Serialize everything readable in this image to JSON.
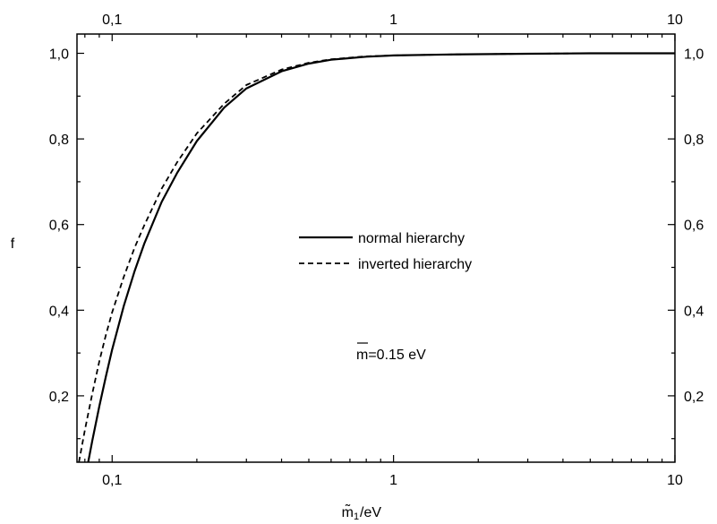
{
  "chart_data": {
    "type": "line",
    "xlabel": "m̃",
    "xlabel_subscript": "1",
    "xlabel_unit": "/eV",
    "ylabel": "f",
    "xscale": "log",
    "xlim": [
      0.075,
      10
    ],
    "ylim": [
      0.045,
      1.045
    ],
    "x_ticks": [
      {
        "value": 0.1,
        "label": "0,1"
      },
      {
        "value": 1,
        "label": "1"
      },
      {
        "value": 10,
        "label": "10"
      }
    ],
    "x_top_ticks": [
      {
        "value": 0.1,
        "label": "0,1"
      },
      {
        "value": 1,
        "label": "1"
      },
      {
        "value": 10,
        "label": "10"
      }
    ],
    "y_ticks": [
      {
        "value": 0.2,
        "label": "0,2"
      },
      {
        "value": 0.4,
        "label": "0,4"
      },
      {
        "value": 0.6,
        "label": "0,6"
      },
      {
        "value": 0.8,
        "label": "0,8"
      },
      {
        "value": 1.0,
        "label": "1,0"
      }
    ],
    "grid": false,
    "legend_position": "center",
    "series": [
      {
        "name": "normal hierarchy",
        "style": "solid",
        "x": [
          0.0822,
          0.085,
          0.09,
          0.095,
          0.1,
          0.11,
          0.12,
          0.13,
          0.15,
          0.17,
          0.2,
          0.25,
          0.3,
          0.4,
          0.5,
          0.6,
          0.8,
          1.0,
          1.5,
          2,
          3,
          5,
          10
        ],
        "y": [
          0.045,
          0.095,
          0.175,
          0.245,
          0.308,
          0.41,
          0.49,
          0.555,
          0.653,
          0.72,
          0.795,
          0.873,
          0.918,
          0.958,
          0.976,
          0.985,
          0.992,
          0.995,
          0.997,
          0.998,
          0.999,
          1.0,
          1.0
        ]
      },
      {
        "name": "inverted hierarchy",
        "style": "dashed",
        "x": [
          0.0762,
          0.08,
          0.085,
          0.09,
          0.095,
          0.1,
          0.11,
          0.12,
          0.13,
          0.15,
          0.17,
          0.2,
          0.25,
          0.3,
          0.4,
          0.5,
          0.6,
          0.8,
          1.0,
          1.5,
          2,
          3,
          5,
          10
        ],
        "y": [
          0.045,
          0.12,
          0.205,
          0.28,
          0.342,
          0.395,
          0.478,
          0.545,
          0.598,
          0.684,
          0.745,
          0.813,
          0.882,
          0.926,
          0.962,
          0.978,
          0.986,
          0.993,
          0.995,
          0.997,
          0.998,
          0.999,
          1.0,
          1.0
        ]
      }
    ],
    "annotations": [
      {
        "text": "m=0.15 eV",
        "overbar_on": "m"
      }
    ]
  },
  "colors": {
    "line": "#000000",
    "background": "#ffffff"
  }
}
